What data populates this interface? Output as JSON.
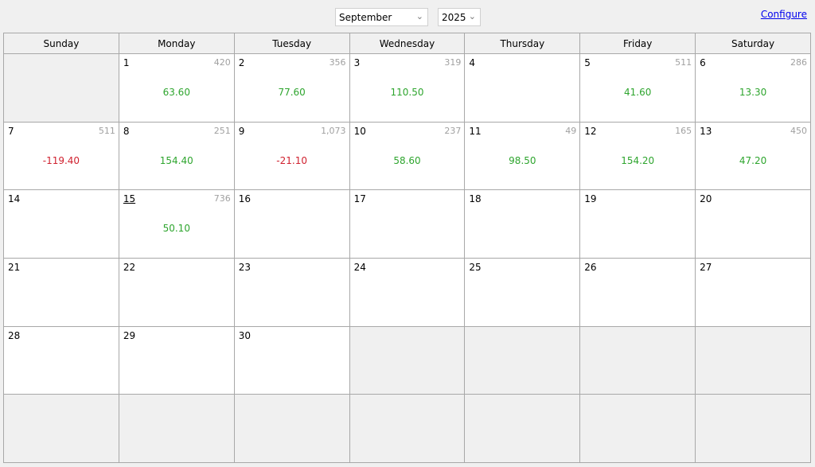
{
  "header": {
    "month": "September",
    "year": "2025",
    "configure_label": "Configure"
  },
  "colors": {
    "positive": "#2ea52e",
    "negative": "#d0212f",
    "count": "#a0a0a0"
  },
  "weekdays": [
    "Sunday",
    "Monday",
    "Tuesday",
    "Wednesday",
    "Thursday",
    "Friday",
    "Saturday"
  ],
  "leading_empty": 1,
  "total_cells": 42,
  "today": "15",
  "days": [
    {
      "day": "1",
      "count": "420",
      "value": "63.60"
    },
    {
      "day": "2",
      "count": "356",
      "value": "77.60"
    },
    {
      "day": "3",
      "count": "319",
      "value": "110.50"
    },
    {
      "day": "4"
    },
    {
      "day": "5",
      "count": "511",
      "value": "41.60"
    },
    {
      "day": "6",
      "count": "286",
      "value": "13.30"
    },
    {
      "day": "7",
      "count": "511",
      "value": "-119.40"
    },
    {
      "day": "8",
      "count": "251",
      "value": "154.40"
    },
    {
      "day": "9",
      "count": "1,073",
      "value": "-21.10"
    },
    {
      "day": "10",
      "count": "237",
      "value": "58.60"
    },
    {
      "day": "11",
      "count": "49",
      "value": "98.50"
    },
    {
      "day": "12",
      "count": "165",
      "value": "154.20"
    },
    {
      "day": "13",
      "count": "450",
      "value": "47.20"
    },
    {
      "day": "14"
    },
    {
      "day": "15",
      "count": "736",
      "value": "50.10"
    },
    {
      "day": "16"
    },
    {
      "day": "17"
    },
    {
      "day": "18"
    },
    {
      "day": "19"
    },
    {
      "day": "20"
    },
    {
      "day": "21"
    },
    {
      "day": "22"
    },
    {
      "day": "23"
    },
    {
      "day": "24"
    },
    {
      "day": "25"
    },
    {
      "day": "26"
    },
    {
      "day": "27"
    },
    {
      "day": "28"
    },
    {
      "day": "29"
    },
    {
      "day": "30"
    }
  ]
}
